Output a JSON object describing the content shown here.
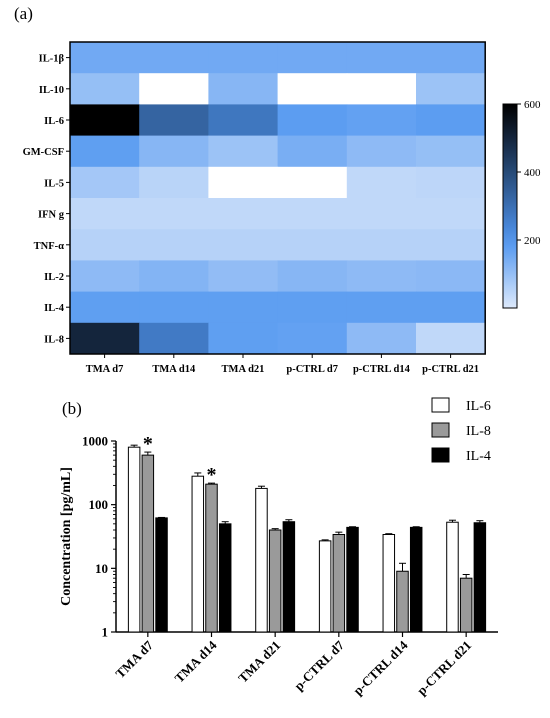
{
  "panel_a_label": "(a)",
  "panel_b_label": "(b)",
  "colors": {
    "heat_low": "#dde9fb",
    "heat_mid": "#4f95f0",
    "heat_high": "#000000",
    "missing": "#ffffff",
    "IL-6": "#ffffff",
    "IL-8": "#9a9a9a",
    "IL-4": "#000000"
  },
  "chart_data": [
    {
      "type": "heatmap",
      "title": "",
      "rows": [
        "IL-1β",
        "IL-10",
        "IL-6",
        "GM-CSF",
        "IL-5",
        "IFN g",
        "TNF-α",
        "IL-2",
        "IL-4",
        "IL-8"
      ],
      "columns": [
        "TMA d7",
        "TMA d14",
        "TMA d21",
        "p-CTRL d7",
        "p-CTRL d14",
        "p-CTRL d21"
      ],
      "values": [
        [
          150,
          150,
          150,
          150,
          150,
          150
        ],
        [
          100,
          null,
          120,
          null,
          null,
          90
        ],
        [
          600,
          330,
          280,
          180,
          170,
          180
        ],
        [
          175,
          120,
          90,
          140,
          110,
          100
        ],
        [
          80,
          50,
          null,
          null,
          40,
          45
        ],
        [
          40,
          40,
          40,
          40,
          40,
          40
        ],
        [
          55,
          55,
          55,
          55,
          55,
          55
        ],
        [
          110,
          125,
          105,
          120,
          110,
          115
        ],
        [
          175,
          175,
          175,
          175,
          175,
          175
        ],
        [
          500,
          270,
          175,
          170,
          110,
          40
        ]
      ],
      "colorbar": {
        "min": 0,
        "max": 600,
        "ticks": [
          200,
          400,
          600
        ]
      }
    },
    {
      "type": "bar",
      "title": "",
      "xlabel": "",
      "ylabel": "Concentration [pg/mL]",
      "yscale": "log",
      "ylim": [
        1,
        1000
      ],
      "yticks": [
        "1",
        "10",
        "100",
        "1000"
      ],
      "yticks_values": [
        1,
        10,
        100,
        1000
      ],
      "categories": [
        "TMA d7",
        "TMA d14",
        "TMA d21",
        "p-CTRL d7",
        "p-CTRL d14",
        "p-CTRL d21"
      ],
      "series": [
        {
          "name": "IL-6",
          "values": [
            800,
            280,
            180,
            27,
            34,
            53
          ],
          "errors": [
            60,
            35,
            15,
            1,
            1,
            4
          ]
        },
        {
          "name": "IL-8",
          "values": [
            600,
            210,
            40,
            34,
            9,
            7
          ],
          "errors": [
            70,
            8,
            2,
            3,
            3,
            1
          ]
        },
        {
          "name": "IL-4",
          "values": [
            62,
            50,
            54,
            44,
            44,
            52
          ],
          "errors": [
            1,
            4,
            4,
            1,
            1,
            4
          ]
        }
      ],
      "annotations": [
        {
          "text": "*",
          "category": "TMA d7",
          "series": "IL-8"
        },
        {
          "text": "*",
          "category": "TMA d14",
          "series": "IL-8"
        }
      ],
      "legend": "top-right"
    }
  ]
}
